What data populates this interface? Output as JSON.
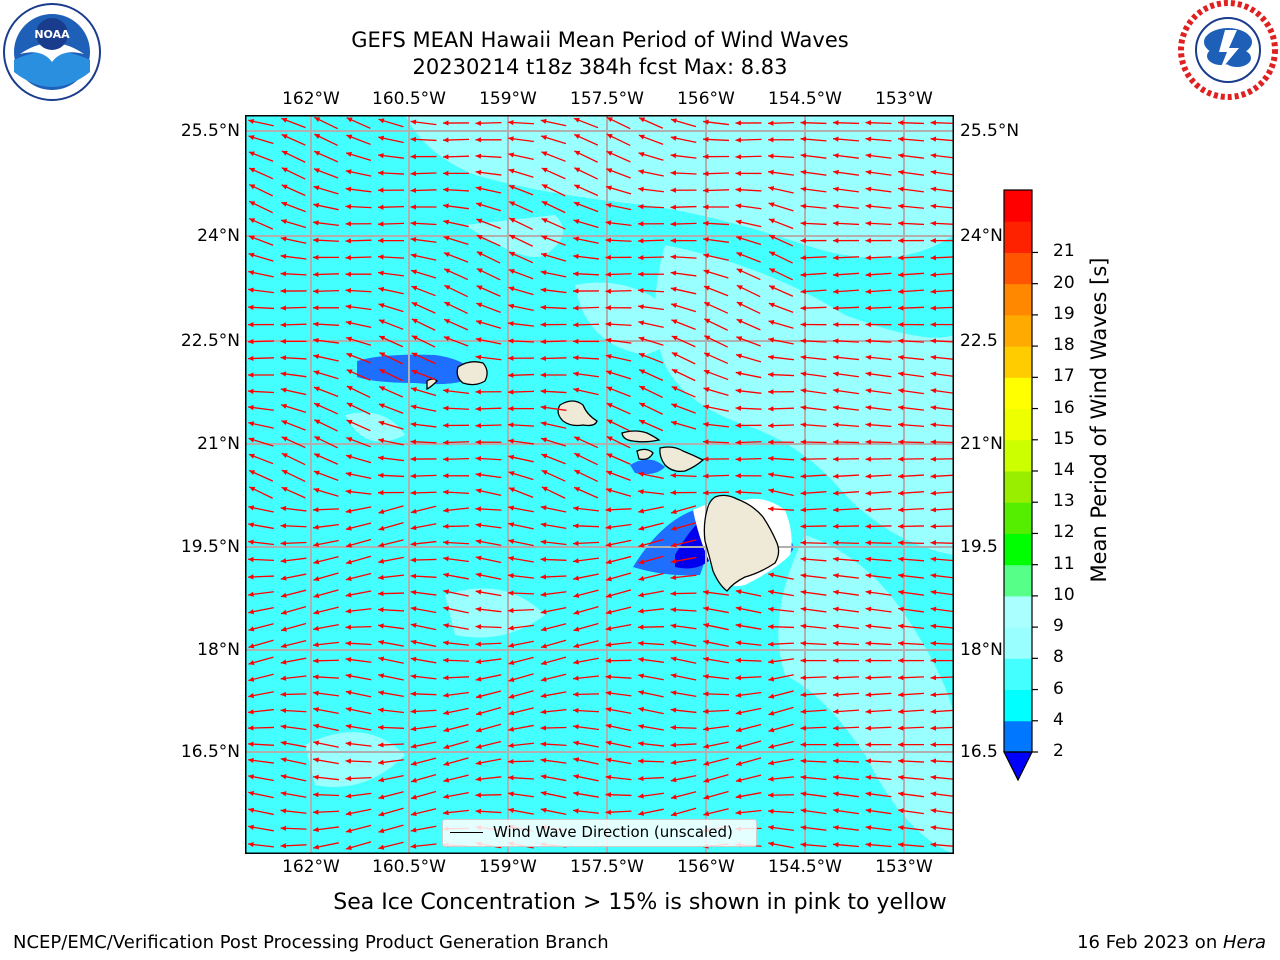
{
  "header": {
    "title_line1": "GEFS MEAN Hawaii Mean Period of Wind Waves",
    "title_line2": "20230214 t18z 384h fcst   Max: 8.83"
  },
  "logos": {
    "left": {
      "text": "NOAA",
      "ring_text": "NATIONAL OCEANIC AND ATMOSPHERIC ADMINISTRATION · U.S. DEPARTMENT OF COMMERCE"
    },
    "right": {
      "ring_text": "NATIONAL WEATHER SERVICE"
    }
  },
  "map": {
    "lon_labels": [
      "162°W",
      "160.5°W",
      "159°W",
      "157.5°W",
      "156°W",
      "154.5°W",
      "153°W"
    ],
    "lat_labels_left": [
      "25.5°N",
      "24°N",
      "22.5°N",
      "21°N",
      "19.5°N",
      "18°N",
      "16.5°N"
    ],
    "lat_labels_right": [
      "25.5°N",
      "24°N",
      "22.5",
      "21°N",
      "19.5",
      "18°N",
      "16.5"
    ],
    "legend_label": "Wind Wave Direction (unscaled)",
    "arrow_color": "#ff0000",
    "land_color": "#efead8",
    "grid_color": "#b0b0b0"
  },
  "colorbar": {
    "label": "Mean Period of Wind Waves [s]",
    "ticks": [
      "2",
      "4",
      "6",
      "8",
      "9",
      "10",
      "11",
      "12",
      "13",
      "14",
      "15",
      "16",
      "17",
      "18",
      "19",
      "20",
      "21"
    ],
    "colors": [
      "#0077ff",
      "#00ffff",
      "#44ffff",
      "#99ffff",
      "#aaffff",
      "#55ff88",
      "#00ff00",
      "#55ee00",
      "#99ee00",
      "#ccff00",
      "#eeff00",
      "#ffff00",
      "#ffcc00",
      "#ffaa00",
      "#ff8800",
      "#ff5500",
      "#ff2200",
      "#ff0000"
    ],
    "under_color": "#0000ff"
  },
  "caption": "Sea Ice Concentration > 15% is shown in pink to yellow",
  "footer": {
    "left": "NCEP/EMC/Verification Post Processing Product Generation Branch",
    "right_date": "16 Feb 2023 on ",
    "right_machine": "Hera"
  }
}
